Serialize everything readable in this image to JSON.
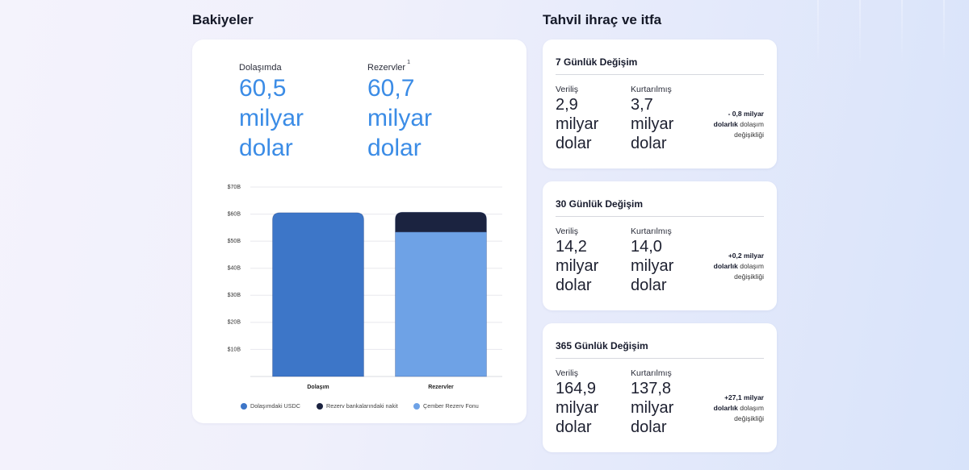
{
  "theme": {
    "accent": "#3b8ce6"
  },
  "balances": {
    "heading": "Bakiyeler",
    "circulation": {
      "label": "Dolaşımda",
      "value": "60,5 milyar dolar"
    },
    "reserves": {
      "label": "Rezervler",
      "footnote": "1",
      "value": "60,7 milyar dolar"
    }
  },
  "chart_data": {
    "type": "bar",
    "stacked": true,
    "categories": [
      "Dolaşım",
      "Rezervler"
    ],
    "series": [
      {
        "name": "Dolaşımdaki USDC",
        "color": "#3d76c8",
        "values": [
          60.5,
          0
        ]
      },
      {
        "name": "Rezerv bankalarındaki nakit",
        "color": "#1b2340",
        "values": [
          0,
          7.3
        ]
      },
      {
        "name": "Çember Rezerv Fonu",
        "color": "#6ea2e6",
        "values": [
          0,
          53.4
        ]
      }
    ],
    "y_ticks": [
      {
        "value": 10,
        "label": "$10B"
      },
      {
        "value": 20,
        "label": "$20B"
      },
      {
        "value": 30,
        "label": "$30B"
      },
      {
        "value": 40,
        "label": "$40B"
      },
      {
        "value": 50,
        "label": "$50B"
      },
      {
        "value": 60,
        "label": "$60B"
      },
      {
        "value": 70,
        "label": "$70B"
      }
    ],
    "ylim": [
      0,
      70
    ],
    "grid": true,
    "legend_position": "bottom"
  },
  "issuance": {
    "heading": "Tahvil ihraç ve itfa",
    "cards": [
      {
        "title": "7 Günlük Değişim",
        "issued_label": "Veriliş",
        "issued_value": "2,9 milyar dolar",
        "redeemed_label": "Kurtarılmış",
        "redeemed_value": "3,7 milyar dolar",
        "change_amount": "- 0,8 milyar dolarlık",
        "change_label": "dolaşım değişikliği"
      },
      {
        "title": "30 Günlük Değişim",
        "issued_label": "Veriliş",
        "issued_value": "14,2 milyar dolar",
        "redeemed_label": "Kurtarılmış",
        "redeemed_value": "14,0 milyar dolar",
        "change_amount": "+0,2 milyar dolarlık",
        "change_label": "dolaşım değişikliği"
      },
      {
        "title": "365 Günlük Değişim",
        "issued_label": "Veriliş",
        "issued_value": "164,9 milyar dolar",
        "redeemed_label": "Kurtarılmış",
        "redeemed_value": "137,8 milyar dolar",
        "change_amount": "+27,1 milyar dolarlık",
        "change_label": "dolaşım değişikliği"
      }
    ]
  }
}
